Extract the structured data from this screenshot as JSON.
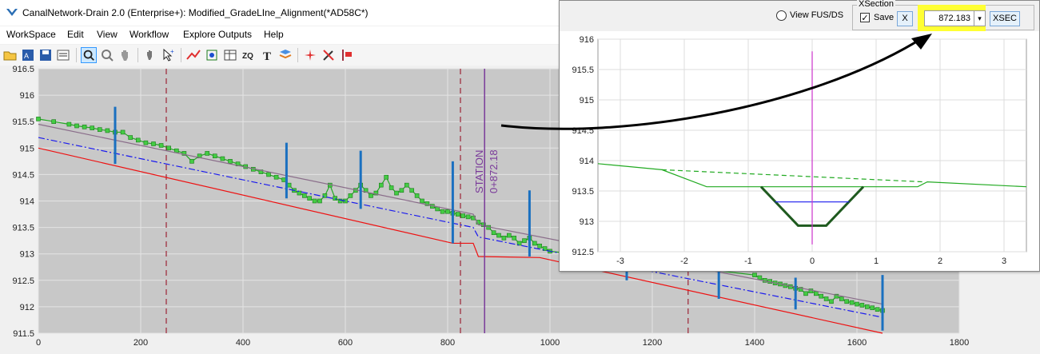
{
  "window": {
    "title": "CanalNetwork-Drain 2.0  (Enterprise+): Modified_GradeLIne_Alignment(*AD58C*)"
  },
  "menu": [
    "WorkSpace",
    "Edit",
    "View",
    "Workflow",
    "Explore Outputs",
    "Help"
  ],
  "toolbar": {
    "icons": [
      "open-folder-icon",
      "save-as-icon",
      "save-disk-icon",
      "properties-icon",
      "zoom-icon",
      "magnify-icon",
      "pan-hand-icon",
      "select-hand-icon",
      "pointer-plus-icon",
      "profile-line-icon",
      "grid-select-icon",
      "table-icon",
      "zq-icon",
      "text-icon",
      "layers-icon",
      "spark-icon",
      "no-pen-icon",
      "station-marker-icon"
    ]
  },
  "station_label": {
    "line1": "STATION",
    "line2": "0+872.18"
  },
  "colors": {
    "plot_bg": "#c8c8c8",
    "ground": "#22aa22",
    "grade": "#8a6d8a",
    "water": "#1a1aee",
    "invert": "#ee1111",
    "piers": "#1a70c0",
    "dashed": "#a03040",
    "station": "#7a3a9a",
    "xsec_center": "#cc33cc",
    "highlight": "#ffff33"
  },
  "xsection_panel": {
    "view_label": "View FUS/DS",
    "group_title": "XSection",
    "save_label": "Save",
    "save_checked": true,
    "x_button": "X",
    "station_value": "872.183",
    "xsec_button": "XSEC"
  },
  "chart_data": [
    {
      "type": "line",
      "title": "",
      "xlim": [
        0,
        1800
      ],
      "ylim": [
        911.5,
        916.5
      ],
      "grid": true,
      "x_ticks": [
        0,
        200,
        400,
        600,
        800,
        1000,
        1200,
        1400,
        1600,
        1800
      ],
      "y_ticks": [
        911.5,
        912,
        912.5,
        913,
        913.5,
        914,
        914.5,
        915,
        915.5,
        916,
        916.5
      ],
      "series": [
        {
          "color_key": "ground",
          "style": "solid-markers",
          "x": [
            0,
            30,
            60,
            75,
            90,
            105,
            120,
            135,
            150,
            165,
            180,
            195,
            210,
            225,
            240,
            255,
            270,
            285,
            300,
            315,
            330,
            345,
            360,
            375,
            390,
            405,
            420,
            435,
            450,
            465,
            480,
            490,
            500,
            510,
            520,
            530,
            540,
            550,
            560,
            570,
            580,
            590,
            600,
            610,
            620,
            630,
            640,
            650,
            660,
            670,
            680,
            690,
            700,
            710,
            720,
            730,
            740,
            750,
            760,
            770,
            780,
            790,
            800,
            810,
            820,
            830,
            840,
            850,
            860,
            870,
            880,
            890,
            900,
            910,
            920,
            930,
            940,
            950,
            960,
            970,
            980,
            990,
            1000,
            1400,
            1410,
            1420,
            1430,
            1440,
            1450,
            1460,
            1470,
            1480,
            1490,
            1500,
            1510,
            1520,
            1530,
            1540,
            1550,
            1560,
            1570,
            1580,
            1590,
            1600,
            1610,
            1620,
            1630,
            1640,
            1650
          ],
          "y": [
            915.55,
            915.5,
            915.45,
            915.42,
            915.4,
            915.38,
            915.35,
            915.33,
            915.3,
            915.3,
            915.2,
            915.15,
            915.1,
            915.08,
            915.05,
            915.0,
            914.95,
            914.9,
            914.75,
            914.85,
            914.9,
            914.85,
            914.8,
            914.75,
            914.7,
            914.65,
            914.6,
            914.55,
            914.5,
            914.45,
            914.4,
            914.3,
            914.2,
            914.15,
            914.1,
            914.05,
            914.0,
            914.0,
            914.1,
            914.3,
            914.05,
            914.0,
            914.0,
            914.1,
            914.2,
            914.3,
            914.2,
            914.1,
            914.15,
            914.3,
            914.45,
            914.25,
            914.15,
            914.2,
            914.3,
            914.2,
            914.1,
            914.0,
            913.95,
            913.9,
            913.85,
            913.8,
            913.8,
            913.77,
            913.75,
            913.72,
            913.7,
            913.68,
            913.6,
            913.55,
            913.5,
            913.4,
            913.35,
            913.3,
            913.35,
            913.3,
            913.2,
            913.25,
            913.3,
            913.2,
            913.15,
            913.1,
            913.05,
            912.6,
            912.55,
            912.5,
            912.48,
            912.45,
            912.43,
            912.4,
            912.38,
            912.35,
            912.33,
            912.25,
            912.3,
            912.25,
            912.2,
            912.15,
            912.1,
            912.2,
            912.15,
            912.1,
            912.08,
            912.05,
            912.03,
            912.0,
            911.98,
            911.95,
            911.93
          ]
        },
        {
          "color_key": "grade",
          "style": "solid",
          "x": [
            0,
            850,
            860,
            1650
          ],
          "y": [
            915.45,
            913.75,
            913.55,
            912.05
          ]
        },
        {
          "color_key": "water",
          "style": "dashdot",
          "x": [
            0,
            850,
            860,
            1650
          ],
          "y": [
            915.2,
            913.5,
            913.32,
            911.8
          ]
        },
        {
          "color_key": "invert",
          "style": "solid",
          "x": [
            0,
            810,
            850,
            860,
            980,
            1650
          ],
          "y": [
            915.0,
            913.2,
            913.2,
            912.95,
            912.93,
            911.5
          ]
        }
      ],
      "piers": [
        {
          "x": 150,
          "y_top": 915.78,
          "y_bottom": 914.7
        },
        {
          "x": 485,
          "y_top": 915.1,
          "y_bottom": 914.05
        },
        {
          "x": 630,
          "y_top": 914.95,
          "y_bottom": 913.85
        },
        {
          "x": 810,
          "y_top": 914.75,
          "y_bottom": 913.2
        },
        {
          "x": 960,
          "y_top": 914.2,
          "y_bottom": 912.95
        },
        {
          "x": 1150,
          "y_top": 912.8,
          "y_bottom": 912.5
        },
        {
          "x": 1330,
          "y_top": 912.8,
          "y_bottom": 912.15
        },
        {
          "x": 1480,
          "y_top": 912.55,
          "y_bottom": 911.95
        },
        {
          "x": 1650,
          "y_top": 912.6,
          "y_bottom": 911.55
        }
      ],
      "dashed_lines": [
        250,
        825,
        1270
      ],
      "station_x": 872.18
    },
    {
      "type": "line",
      "title": "",
      "xlim": [
        -3.35,
        3.35
      ],
      "ylim": [
        912.5,
        916
      ],
      "grid": true,
      "x_ticks": [
        -3,
        -2,
        -1,
        0,
        1,
        2,
        3
      ],
      "y_ticks": [
        912.5,
        913,
        913.5,
        914,
        914.5,
        915,
        915.5,
        916
      ],
      "series": [
        {
          "color_key": "ground",
          "style": "solid",
          "x": [
            -3.35,
            -2.35,
            -1.65,
            -0.8,
            0.8,
            1.65,
            1.8,
            3.35
          ],
          "y": [
            913.95,
            913.85,
            913.57,
            913.57,
            913.57,
            913.57,
            913.65,
            913.57
          ]
        },
        {
          "color_key": "ground",
          "style": "dashed",
          "x": [
            -2.35,
            1.75
          ],
          "y": [
            913.85,
            913.65
          ]
        },
        {
          "color_key": "ground",
          "style": "thick",
          "x": [
            -0.8,
            -0.22,
            0.22,
            0.8
          ],
          "y": [
            913.57,
            912.93,
            912.93,
            913.57
          ]
        },
        {
          "color_key": "water",
          "style": "solid",
          "x": [
            -0.58,
            0.58
          ],
          "y": [
            913.32,
            913.32
          ]
        },
        {
          "color_key": "xsec_center",
          "style": "solid",
          "x": [
            0,
            0
          ],
          "y": [
            912.62,
            915.8
          ]
        }
      ]
    }
  ]
}
